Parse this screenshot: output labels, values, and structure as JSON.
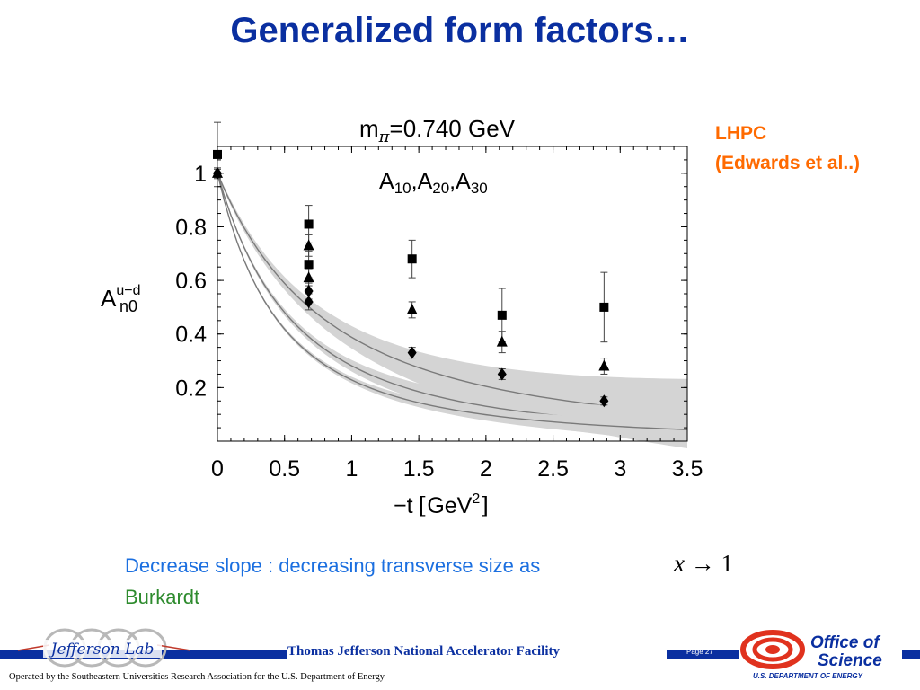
{
  "slide": {
    "title": "Generalized form factors…",
    "citation_line1": "LHPC",
    "citation_line2": "(Edwards et al..)",
    "caption_line1": "Decrease slope : decreasing transverse size as",
    "caption_math_x": "x",
    "caption_math_arrow": "→",
    "caption_math_one": "1",
    "caption_line2": "Burkardt",
    "colors": {
      "title": "#0a2fa0",
      "citation": "#ff6a00",
      "caption": "#1b6fe0",
      "caption2": "#2e8b2e"
    }
  },
  "footer": {
    "facility": "Thomas Jefferson National Accelerator Facility",
    "page": "Page 27",
    "operated_by": "Operated by the Southeastern Universities Research Association for the U.S. Department of  Energy",
    "jlab_logo_text": "Jefferson Lab",
    "doe_office": "Office of",
    "doe_science": "Science",
    "doe_dept": "U.S. DEPARTMENT OF ENERGY"
  },
  "chart_data": {
    "type": "scatter",
    "title_main": "m",
    "title_sub": "π",
    "title_rest": "=0.740 GeV",
    "series_label_A": "A",
    "series_label_10": "10",
    "series_label_20": "20",
    "series_label_30": "30",
    "series_label_sep": ",",
    "ylabel_main": "A",
    "ylabel_sup": "u−d",
    "ylabel_sub": "n0",
    "xlabel_main": "−t",
    "xlabel_lb": "[",
    "xlabel_unit": "GeV",
    "xlabel_sup": "2",
    "xlabel_rb": "]",
    "xlim": [
      0,
      3.5
    ],
    "ylim": [
      0,
      1.1
    ],
    "xticks": [
      "0",
      "0.5",
      "1",
      "1.5",
      "2",
      "2.5",
      "3",
      "3.5"
    ],
    "yticks": [
      "0.2",
      "0.4",
      "0.6",
      "0.8",
      "1"
    ],
    "grid": false,
    "series": [
      {
        "marker": "square",
        "points": [
          {
            "x": 0.0,
            "y": 1.07,
            "err": 0.12
          },
          {
            "x": 0.68,
            "y": 0.81,
            "err": 0.07
          },
          {
            "x": 0.68,
            "y": 0.66,
            "err": 0.05
          },
          {
            "x": 1.45,
            "y": 0.68,
            "err": 0.07
          },
          {
            "x": 2.12,
            "y": 0.47,
            "err": 0.1
          },
          {
            "x": 2.88,
            "y": 0.5,
            "err": 0.13
          }
        ],
        "band_M": 1.65,
        "band_width": 0.035
      },
      {
        "marker": "triangle",
        "points": [
          {
            "x": 0.0,
            "y": 1.0,
            "err": 0.02
          },
          {
            "x": 0.68,
            "y": 0.73,
            "err": 0.04
          },
          {
            "x": 0.68,
            "y": 0.61,
            "err": 0.03
          },
          {
            "x": 1.45,
            "y": 0.49,
            "err": 0.03
          },
          {
            "x": 2.12,
            "y": 0.37,
            "err": 0.04
          },
          {
            "x": 2.88,
            "y": 0.28,
            "err": 0.03
          }
        ],
        "band_M": 1.13,
        "band_width": 0.018
      },
      {
        "marker": "diamond",
        "points": [
          {
            "x": 0.0,
            "y": 1.0,
            "err": 0.015
          },
          {
            "x": 0.68,
            "y": 0.56,
            "err": 0.03
          },
          {
            "x": 0.68,
            "y": 0.52,
            "err": 0.03
          },
          {
            "x": 1.45,
            "y": 0.33,
            "err": 0.02
          },
          {
            "x": 2.12,
            "y": 0.25,
            "err": 0.02
          },
          {
            "x": 2.88,
            "y": 0.15,
            "err": 0.015
          }
        ],
        "band_M": 0.915,
        "band_width": 0.01
      }
    ]
  }
}
